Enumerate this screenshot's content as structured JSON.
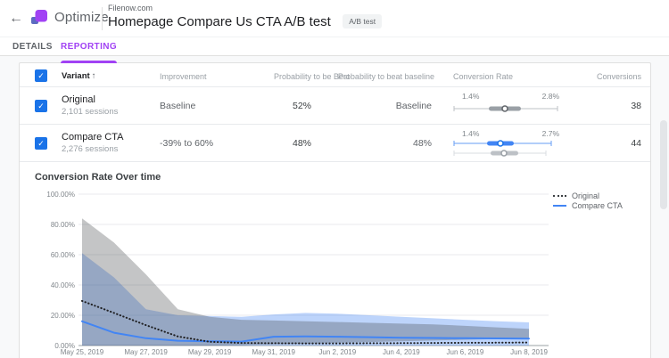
{
  "icons": {
    "back": "←",
    "help": "?",
    "more": "⋮",
    "check": "✓",
    "sort_asc": "↑"
  },
  "header": {
    "app_name": "Optimize",
    "container_label": "Filenow.com",
    "experiment_title": "Homepage Compare Us CTA A/B test",
    "experiment_type_badge": "A/B test"
  },
  "tabs": [
    {
      "label": "DETAILS",
      "active": false
    },
    {
      "label": "REPORTING",
      "active": true
    }
  ],
  "table": {
    "header": {
      "variant": "Variant",
      "improvement": "Improvement",
      "prob_best": "Probability to be Best",
      "prob_beat": "Probability to beat baseline",
      "conv_rate": "Conversion Rate",
      "conversions": "Conversions"
    },
    "rows": [
      {
        "name": "Original",
        "sessions": "2,101 sessions",
        "improvement": "Baseline",
        "prob_best": "52%",
        "prob_beat": "Baseline",
        "ci_low": "1.4%",
        "ci_high": "2.8%",
        "conversions": "38",
        "checked": true
      },
      {
        "name": "Compare CTA",
        "sessions": "2,276 sessions",
        "improvement": "-39% to 60%",
        "prob_best": "48%",
        "prob_beat": "48%",
        "ci_low": "1.4%",
        "ci_high": "2.7%",
        "conversions": "44",
        "checked": true
      }
    ]
  },
  "chart_data": {
    "type": "area",
    "title": "Conversion Rate Over time",
    "xlabel": "",
    "ylabel": "",
    "ylim": [
      0,
      100
    ],
    "grid": true,
    "legend_position": "top-right",
    "yticks": [
      "0.00%",
      "20.00%",
      "40.00%",
      "60.00%",
      "80.00%",
      "100.00%"
    ],
    "x": [
      "May 25, 2019",
      "May 26, 2019",
      "May 27, 2019",
      "May 28, 2019",
      "May 29, 2019",
      "May 30, 2019",
      "May 31, 2019",
      "Jun 1, 2019",
      "Jun 2, 2019",
      "Jun 3, 2019",
      "Jun 4, 2019",
      "Jun 5, 2019",
      "Jun 6, 2019",
      "Jun 7, 2019",
      "Jun 8, 2019"
    ],
    "x_tick_labels": [
      "May 25, 2019",
      "May 27, 2019",
      "May 29, 2019",
      "May 31, 2019",
      "Jun 2, 2019",
      "Jun 4, 2019",
      "Jun 6, 2019",
      "Jun 8, 2019"
    ],
    "series": [
      {
        "name": "Original",
        "style": "dotted",
        "color": "#202124",
        "band_color": "rgba(60,64,67,0.30)",
        "values": [
          29.5,
          21.5,
          13.5,
          6.0,
          2.5,
          1.7,
          1.5,
          1.4,
          1.4,
          1.5,
          1.6,
          1.7,
          1.8,
          1.9,
          2.0
        ],
        "band_upper": [
          84,
          68,
          47,
          24,
          19,
          17,
          16.5,
          16,
          15.5,
          15,
          14.5,
          14,
          13,
          12,
          11
        ],
        "band_lower": [
          0,
          0,
          0,
          0,
          0,
          0.3,
          0.8,
          1.2,
          1.8,
          2.3,
          2.8,
          3.3,
          3.8,
          4.3,
          5
        ]
      },
      {
        "name": "Compare CTA",
        "style": "solid",
        "color": "#4285f4",
        "band_color": "rgba(66,133,244,0.35)",
        "values": [
          16,
          8.5,
          4.8,
          3.2,
          2.8,
          2.6,
          5.8,
          6.0,
          5.8,
          5.5,
          5.2,
          5.0,
          4.8,
          4.7,
          4.6
        ],
        "band_upper": [
          61,
          45,
          24,
          20,
          19.5,
          19,
          20.5,
          21.5,
          21,
          20,
          19,
          18,
          17,
          16,
          15.3
        ],
        "band_lower": [
          0,
          0,
          0,
          0,
          0,
          0,
          0,
          0,
          0,
          0,
          0,
          0,
          0,
          0,
          0
        ]
      }
    ]
  }
}
